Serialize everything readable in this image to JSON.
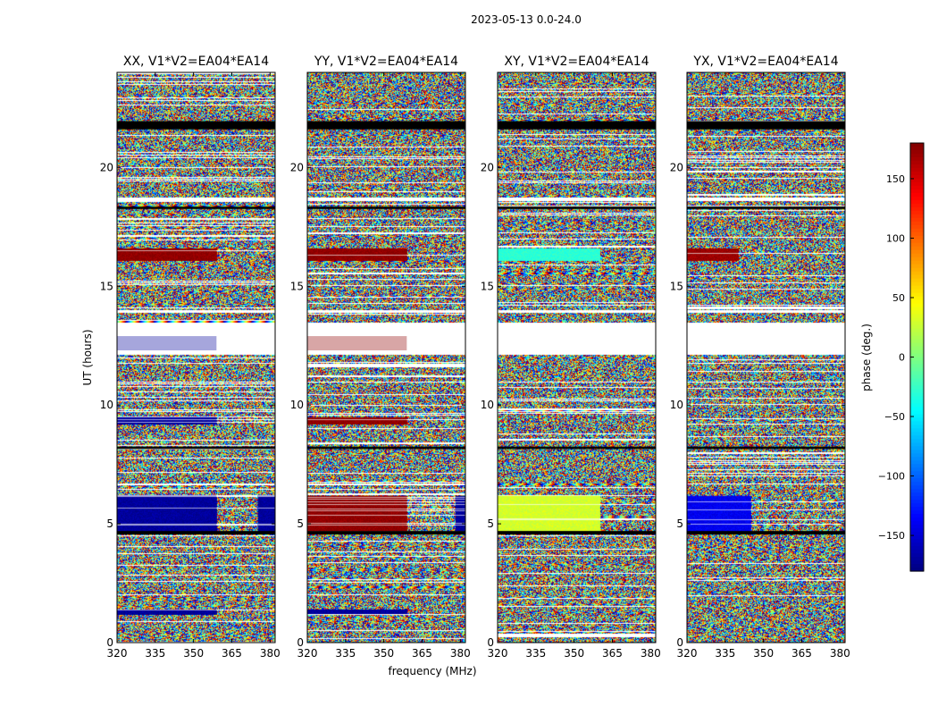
{
  "figure_title": "2023-05-13 0.0-24.0",
  "colors": {
    "background": "#ffffff",
    "frame": "#000000",
    "flagged": "#ffffff",
    "black_band": "#000000"
  },
  "chart_data": {
    "type": "heatmap",
    "title": "2023-05-13 0.0-24.0",
    "xlabel": "frequency (MHz)",
    "ylabel": "UT (hours)",
    "xlim": [
      320,
      382
    ],
    "ylim": [
      0,
      24
    ],
    "xticks": [
      320,
      335,
      350,
      365,
      380
    ],
    "yticks": [
      0,
      5,
      10,
      15,
      20
    ],
    "colorbar": {
      "label": "phase (deg.)",
      "colormap": "jet",
      "range": [
        -180,
        180
      ],
      "ticks": [
        -150,
        -100,
        -50,
        0,
        50,
        100,
        150
      ],
      "tick_labels": [
        "−150",
        "−100",
        "−50",
        "0",
        "50",
        "100",
        "150"
      ]
    },
    "flagged_ut_ranges": [
      [
        12.15,
        13.5
      ],
      [
        10.95,
        11.0
      ],
      [
        13.9,
        14.0
      ],
      [
        18.6,
        18.75
      ]
    ],
    "panels": [
      {
        "name": "XX",
        "title": "XX, V1*V2=EA04*EA14",
        "coherent_phase_blocks": [
          {
            "ut_range": [
              4.7,
              6.2
            ],
            "freq_range": [
              320,
              359
            ],
            "phase": -170
          },
          {
            "ut_range": [
              4.7,
              6.2
            ],
            "freq_range": [
              375,
              382
            ],
            "phase": -170
          },
          {
            "ut_range": [
              16.1,
              16.6
            ],
            "freq_range": [
              320,
              359
            ],
            "phase": 175
          },
          {
            "ut_range": [
              12.3,
              12.9
            ],
            "freq_range": [
              320,
              359
            ],
            "phase": -170
          },
          {
            "ut_range": [
              9.2,
              9.5
            ],
            "freq_range": [
              320,
              359
            ],
            "phase": -170
          },
          {
            "ut_range": [
              1.2,
              1.4
            ],
            "freq_range": [
              320,
              359
            ],
            "phase": -170
          }
        ]
      },
      {
        "name": "YY",
        "title": "YY, V1*V2=EA04*EA14",
        "coherent_phase_blocks": [
          {
            "ut_range": [
              4.7,
              6.2
            ],
            "freq_range": [
              320,
              359
            ],
            "phase": 175
          },
          {
            "ut_range": [
              4.7,
              6.2
            ],
            "freq_range": [
              378,
              382
            ],
            "phase": -170
          },
          {
            "ut_range": [
              16.1,
              16.6
            ],
            "freq_range": [
              320,
              359
            ],
            "phase": 175
          },
          {
            "ut_range": [
              12.3,
              12.9
            ],
            "freq_range": [
              320,
              359
            ],
            "phase": 175
          },
          {
            "ut_range": [
              9.2,
              9.5
            ],
            "freq_range": [
              320,
              359
            ],
            "phase": 175
          },
          {
            "ut_range": [
              1.2,
              1.4
            ],
            "freq_range": [
              320,
              359
            ],
            "phase": -170
          }
        ]
      },
      {
        "name": "XY",
        "title": "XY, V1*V2=EA04*EA14",
        "coherent_phase_blocks": [
          {
            "ut_range": [
              4.7,
              6.2
            ],
            "freq_range": [
              320,
              360
            ],
            "phase": 30
          },
          {
            "ut_range": [
              16.1,
              16.6
            ],
            "freq_range": [
              320,
              360
            ],
            "phase": -30
          }
        ]
      },
      {
        "name": "YX",
        "title": "YX, V1*V2=EA04*EA14",
        "coherent_phase_blocks": [
          {
            "ut_range": [
              4.7,
              6.2
            ],
            "freq_range": [
              320,
              345
            ],
            "phase": -140
          },
          {
            "ut_range": [
              16.1,
              16.6
            ],
            "freq_range": [
              320,
              340
            ],
            "phase": 170
          }
        ]
      }
    ]
  }
}
